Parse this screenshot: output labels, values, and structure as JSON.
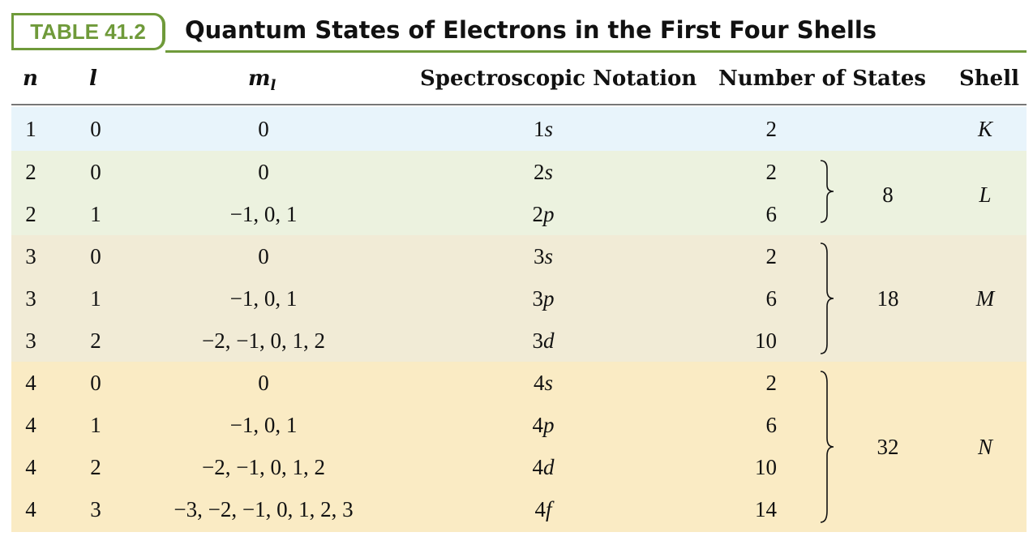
{
  "title": {
    "badge": "TABLE 41.2",
    "text": "Quantum States of Electrons in the First Four Shells"
  },
  "headers": {
    "n": "n",
    "l": "l",
    "ml": "m",
    "ml_sub": "l",
    "notation": "Spectroscopic Notation",
    "states": "Number of States",
    "shell": "Shell"
  },
  "rows": [
    {
      "n": "1",
      "l": "0",
      "ml": "0",
      "notation_num": "1",
      "notation_letter": "s",
      "states": "2"
    },
    {
      "n": "2",
      "l": "0",
      "ml": "0",
      "notation_num": "2",
      "notation_letter": "s",
      "states": "2"
    },
    {
      "n": "2",
      "l": "1",
      "ml": "−1, 0, 1",
      "notation_num": "2",
      "notation_letter": "p",
      "states": "6"
    },
    {
      "n": "3",
      "l": "0",
      "ml": "0",
      "notation_num": "3",
      "notation_letter": "s",
      "states": "2"
    },
    {
      "n": "3",
      "l": "1",
      "ml": "−1, 0, 1",
      "notation_num": "3",
      "notation_letter": "p",
      "states": "6"
    },
    {
      "n": "3",
      "l": "2",
      "ml": "−2, −1, 0, 1, 2",
      "notation_num": "3",
      "notation_letter": "d",
      "states": "10"
    },
    {
      "n": "4",
      "l": "0",
      "ml": "0",
      "notation_num": "4",
      "notation_letter": "s",
      "states": "2"
    },
    {
      "n": "4",
      "l": "1",
      "ml": "−1, 0, 1",
      "notation_num": "4",
      "notation_letter": "p",
      "states": "6"
    },
    {
      "n": "4",
      "l": "2",
      "ml": "−2, −1, 0, 1, 2",
      "notation_num": "4",
      "notation_letter": "d",
      "states": "10"
    },
    {
      "n": "4",
      "l": "3",
      "ml": "−3, −2, −1, 0, 1, 2, 3",
      "notation_num": "4",
      "notation_letter": "f",
      "states": "14"
    }
  ],
  "shells": [
    {
      "shell": "K",
      "total": ""
    },
    {
      "shell": "L",
      "total": "8"
    },
    {
      "shell": "M",
      "total": "18"
    },
    {
      "shell": "N",
      "total": "32"
    }
  ],
  "colors": {
    "accent": "#6f9a3a",
    "band_k": "#e8f4fb",
    "band_l": "#ecf2df",
    "band_m": "#f1ebd6",
    "band_n": "#faebc4"
  }
}
